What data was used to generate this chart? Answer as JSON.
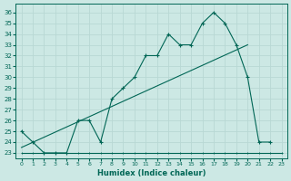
{
  "title": "",
  "xlabel": "Humidex (Indice chaleur)",
  "ylabel": "",
  "bg_color": "#cce8e4",
  "line_color": "#006655",
  "grid_color": "#b8d8d4",
  "x_ticks": [
    0,
    1,
    2,
    3,
    4,
    5,
    6,
    7,
    8,
    9,
    10,
    11,
    12,
    13,
    14,
    15,
    16,
    17,
    18,
    19,
    20,
    21,
    22,
    23
  ],
  "y_ticks": [
    23,
    24,
    25,
    26,
    27,
    28,
    29,
    30,
    31,
    32,
    33,
    34,
    35,
    36
  ],
  "ylim": [
    22.5,
    36.8
  ],
  "xlim": [
    -0.5,
    23.5
  ],
  "line1_x": [
    0,
    1,
    2,
    3,
    4,
    5,
    6,
    7,
    8,
    9,
    10,
    11,
    12,
    13,
    14,
    15,
    16,
    17,
    18,
    19,
    20,
    21,
    22
  ],
  "line1_y": [
    25,
    24,
    23,
    23,
    23,
    26,
    26,
    24,
    28,
    29,
    30,
    32,
    32,
    34,
    33,
    33,
    35,
    36,
    35,
    33,
    30,
    24,
    24
  ],
  "line2_x": [
    0,
    1,
    2,
    3,
    4,
    5,
    6,
    7,
    8,
    9,
    10,
    11,
    12,
    13,
    14,
    15,
    16,
    17,
    18,
    19,
    20,
    21,
    22,
    23
  ],
  "line2_y": [
    23,
    23,
    23,
    23,
    23,
    23,
    23,
    23,
    23,
    23,
    23,
    23,
    23,
    23,
    23,
    23,
    23,
    23,
    23,
    23,
    23,
    23,
    23,
    23
  ],
  "line3_x": [
    0,
    20
  ],
  "line3_y": [
    23.5,
    33
  ]
}
